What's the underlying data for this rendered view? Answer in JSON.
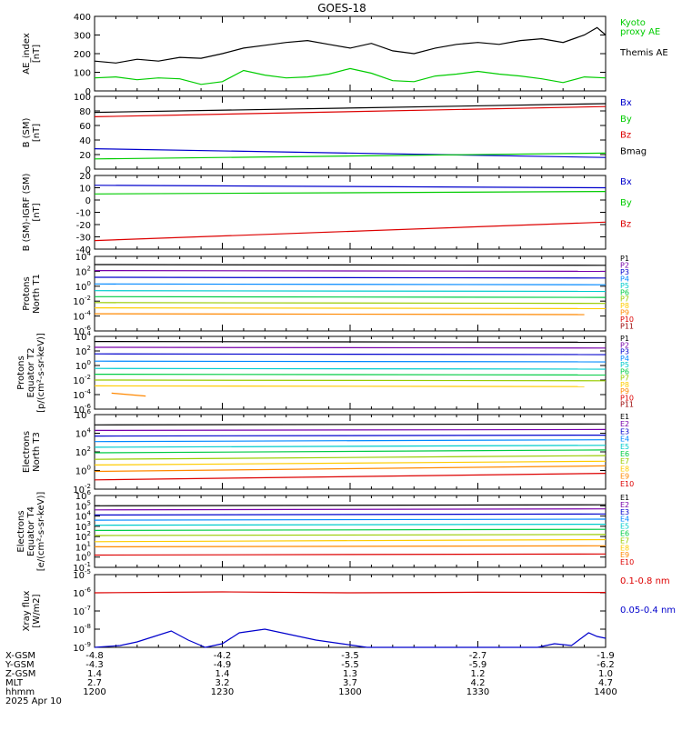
{
  "title": "GOES-18",
  "chart_data": {
    "type": "line",
    "time": {
      "categories": [
        "1200",
        "1230",
        "1300",
        "1330",
        "1400"
      ],
      "rows": [
        {
          "label": "X-GSM",
          "values": [
            "-4.8",
            "-4.2",
            "-3.5",
            "-2.7",
            "-1.9"
          ]
        },
        {
          "label": "Y-GSM",
          "values": [
            "-4.3",
            "-4.9",
            "-5.5",
            "-5.9",
            "-6.2"
          ]
        },
        {
          "label": "Z-GSM",
          "values": [
            "1.4",
            "1.4",
            "1.3",
            "1.2",
            "1.0"
          ]
        },
        {
          "label": "MLT",
          "values": [
            "2.7",
            "3.2",
            "3.7",
            "4.2",
            "4.7"
          ]
        },
        {
          "label": "hhmm",
          "values": [
            "1200",
            "1230",
            "1300",
            "1330",
            "1400"
          ]
        }
      ],
      "date": "2025 Apr 10"
    },
    "panels": [
      {
        "id": "ae",
        "ylabel": "AE_index\n[nT]",
        "scale": "linear",
        "ylim": [
          0,
          400
        ],
        "ticks": [
          "0",
          "100",
          "200",
          "300",
          "400"
        ],
        "series": [
          {
            "name": "Kyoto\nproxy AE",
            "color": "#00cc00",
            "x": [
              0,
              5,
              10,
              15,
              20,
              25,
              30,
              35,
              40,
              45,
              50,
              55,
              60,
              65,
              70,
              75,
              80,
              85,
              90,
              95,
              100,
              105,
              110,
              115,
              120
            ],
            "values": [
              70,
              75,
              60,
              70,
              65,
              35,
              50,
              110,
              85,
              70,
              75,
              90,
              120,
              95,
              55,
              50,
              80,
              90,
              105,
              90,
              80,
              65,
              45,
              75,
              70
            ]
          },
          {
            "name": "Themis AE",
            "color": "#000000",
            "x": [
              0,
              5,
              10,
              15,
              20,
              25,
              30,
              35,
              40,
              45,
              50,
              55,
              60,
              65,
              70,
              75,
              80,
              85,
              90,
              95,
              100,
              105,
              110,
              115,
              118,
              120
            ],
            "values": [
              160,
              150,
              170,
              160,
              180,
              175,
              200,
              230,
              245,
              260,
              270,
              250,
              230,
              255,
              215,
              200,
              230,
              250,
              260,
              250,
              270,
              280,
              260,
              300,
              340,
              300
            ]
          }
        ]
      },
      {
        "id": "bsm",
        "ylabel": "B (SM)\n[nT]",
        "scale": "linear",
        "ylim": [
          0,
          100
        ],
        "ticks": [
          "0",
          "20",
          "40",
          "60",
          "80",
          "100"
        ],
        "series": [
          {
            "name": "Bx",
            "color": "#0000cc",
            "x": [
              0,
              120
            ],
            "values": [
              28,
              16
            ]
          },
          {
            "name": "By",
            "color": "#00cc00",
            "x": [
              0,
              120
            ],
            "values": [
              14,
              22
            ]
          },
          {
            "name": "Bz",
            "color": "#dd0000",
            "x": [
              0,
              120
            ],
            "values": [
              72,
              86
            ]
          },
          {
            "name": "Bmag",
            "color": "#000000",
            "x": [
              0,
              120
            ],
            "values": [
              78,
              90
            ]
          }
        ]
      },
      {
        "id": "bigrf",
        "ylabel": "B (SM)-IGRF (SM)\n[nT]",
        "scale": "linear",
        "ylim": [
          -40,
          20
        ],
        "ticks": [
          "-40",
          "-30",
          "-20",
          "-10",
          "0",
          "10",
          "20"
        ],
        "series": [
          {
            "name": "Bx",
            "color": "#0000cc",
            "x": [
              0,
              120
            ],
            "values": [
              12,
              10
            ]
          },
          {
            "name": "By",
            "color": "#00cc00",
            "x": [
              0,
              120
            ],
            "values": [
              5,
              7
            ]
          },
          {
            "name": "Bz",
            "color": "#dd0000",
            "x": [
              0,
              120
            ],
            "values": [
              -33,
              -18
            ]
          }
        ]
      },
      {
        "id": "protons_t1",
        "ylabel": "Protons\nNorth T1",
        "scale": "log",
        "ylim": [
          -6,
          4
        ],
        "ticks": [
          "10^-6",
          "10^-4",
          "10^-2",
          "10^0",
          "10^2",
          "10^4"
        ],
        "series": [
          {
            "name": "P1",
            "color": "#000000",
            "x": [
              0,
              120
            ],
            "values": [
              2.9,
              2.8
            ]
          },
          {
            "name": "P2",
            "color": "#7700aa",
            "x": [
              0,
              120
            ],
            "values": [
              2.1,
              2.0
            ]
          },
          {
            "name": "P3",
            "color": "#0000cc",
            "x": [
              0,
              120
            ],
            "values": [
              1.2,
              1.1
            ]
          },
          {
            "name": "P4",
            "color": "#0088ff",
            "x": [
              0,
              120
            ],
            "values": [
              0.3,
              0.2
            ]
          },
          {
            "name": "P5",
            "color": "#00cccc",
            "x": [
              0,
              120
            ],
            "values": [
              -0.6,
              -0.7
            ]
          },
          {
            "name": "P6",
            "color": "#00cc44",
            "x": [
              0,
              120
            ],
            "values": [
              -1.4,
              -1.5
            ]
          },
          {
            "name": "P7",
            "color": "#99cc00",
            "x": [
              0,
              120
            ],
            "values": [
              -2.2,
              -2.3
            ]
          },
          {
            "name": "P8",
            "color": "#ffcc00",
            "x": [
              0,
              120
            ],
            "values": [
              -2.9,
              -3.0
            ]
          },
          {
            "name": "P9",
            "color": "#ff8800",
            "x": [
              0,
              115
            ],
            "values": [
              -3.7,
              -3.8
            ]
          },
          {
            "name": "P10",
            "color": "#dd0000",
            "x": [],
            "values": []
          },
          {
            "name": "P11",
            "color": "#990000",
            "x": [],
            "values": []
          }
        ]
      },
      {
        "id": "protons_t2",
        "ylabel": "Protons\nEquator T2\n[p/(cm²-s-sr-keV)]",
        "scale": "log",
        "ylim": [
          -6,
          4
        ],
        "ticks": [
          "10^-6",
          "10^-4",
          "10^-2",
          "10^0",
          "10^2",
          "10^4"
        ],
        "series": [
          {
            "name": "P1",
            "color": "#000000",
            "x": [
              0,
              120
            ],
            "values": [
              3.3,
              3.2
            ]
          },
          {
            "name": "P2",
            "color": "#7700aa",
            "x": [
              0,
              120
            ],
            "values": [
              2.5,
              2.4
            ]
          },
          {
            "name": "P3",
            "color": "#0000cc",
            "x": [
              0,
              120
            ],
            "values": [
              1.6,
              1.5
            ]
          },
          {
            "name": "P4",
            "color": "#0088ff",
            "x": [
              0,
              120
            ],
            "values": [
              0.6,
              0.5
            ]
          },
          {
            "name": "P5",
            "color": "#00cccc",
            "x": [
              0,
              120
            ],
            "values": [
              -0.4,
              -0.5
            ]
          },
          {
            "name": "P6",
            "color": "#00cc44",
            "x": [
              0,
              120
            ],
            "values": [
              -1.2,
              -1.3
            ]
          },
          {
            "name": "P7",
            "color": "#99cc00",
            "x": [
              0,
              120
            ],
            "values": [
              -2.0,
              -2.1
            ]
          },
          {
            "name": "P8",
            "color": "#ffcc00",
            "x": [
              0,
              115
            ],
            "values": [
              -2.8,
              -2.9
            ]
          },
          {
            "name": "P9",
            "color": "#ff8800",
            "x": [
              4,
              12
            ],
            "values": [
              -3.8,
              -4.2
            ]
          },
          {
            "name": "P10",
            "color": "#dd0000",
            "x": [],
            "values": []
          },
          {
            "name": "P11",
            "color": "#990000",
            "x": [],
            "values": []
          }
        ]
      },
      {
        "id": "electrons_t3",
        "ylabel": "Electrons\nNorth T3",
        "scale": "log",
        "ylim": [
          -2,
          6
        ],
        "ticks": [
          "10^-2",
          "10^0",
          "10^2",
          "10^4",
          "10^6"
        ],
        "series": [
          {
            "name": "E1",
            "color": "#000000",
            "x": [
              0,
              120
            ],
            "values": [
              4.9,
              5.0
            ]
          },
          {
            "name": "E2",
            "color": "#7700aa",
            "x": [
              0,
              120
            ],
            "values": [
              4.3,
              4.4
            ]
          },
          {
            "name": "E3",
            "color": "#0000cc",
            "x": [
              0,
              120
            ],
            "values": [
              3.7,
              3.8
            ]
          },
          {
            "name": "E4",
            "color": "#0088ff",
            "x": [
              0,
              120
            ],
            "values": [
              3.1,
              3.3
            ]
          },
          {
            "name": "E5",
            "color": "#00cccc",
            "x": [
              0,
              120
            ],
            "values": [
              2.5,
              2.7
            ]
          },
          {
            "name": "E6",
            "color": "#00cc44",
            "x": [
              0,
              120
            ],
            "values": [
              1.9,
              2.2
            ]
          },
          {
            "name": "E7",
            "color": "#99cc00",
            "x": [
              0,
              120
            ],
            "values": [
              1.2,
              1.6
            ]
          },
          {
            "name": "E8",
            "color": "#ffcc00",
            "x": [
              0,
              120
            ],
            "values": [
              0.6,
              1.0
            ]
          },
          {
            "name": "E9",
            "color": "#ff8800",
            "x": [
              0,
              120
            ],
            "values": [
              -0.1,
              0.5
            ]
          },
          {
            "name": "E10",
            "color": "#dd0000",
            "x": [
              0,
              120
            ],
            "values": [
              -1.0,
              -0.3
            ]
          }
        ]
      },
      {
        "id": "electrons_t4",
        "ylabel": "Electrons\nEquator T4\n[e/(cm²-s-sr-keV)]",
        "scale": "log",
        "ylim": [
          -1,
          6
        ],
        "ticks": [
          "10^-1",
          "10^0",
          "10^1",
          "10^2",
          "10^3",
          "10^4",
          "10^5",
          "10^6"
        ],
        "series": [
          {
            "name": "E1",
            "color": "#000000",
            "x": [
              0,
              120
            ],
            "values": [
              5.0,
              5.1
            ]
          },
          {
            "name": "E2",
            "color": "#7700aa",
            "x": [
              0,
              120
            ],
            "values": [
              4.6,
              4.7
            ]
          },
          {
            "name": "E3",
            "color": "#0000cc",
            "x": [
              0,
              120
            ],
            "values": [
              4.1,
              4.2
            ]
          },
          {
            "name": "E4",
            "color": "#0088ff",
            "x": [
              0,
              120
            ],
            "values": [
              3.6,
              3.7
            ]
          },
          {
            "name": "E5",
            "color": "#00cccc",
            "x": [
              0,
              120
            ],
            "values": [
              3.1,
              3.2
            ]
          },
          {
            "name": "E6",
            "color": "#00cc44",
            "x": [
              0,
              120
            ],
            "values": [
              2.6,
              2.7
            ]
          },
          {
            "name": "E7",
            "color": "#99cc00",
            "x": [
              0,
              120
            ],
            "values": [
              2.1,
              2.2
            ]
          },
          {
            "name": "E8",
            "color": "#ffcc00",
            "x": [
              0,
              120
            ],
            "values": [
              1.5,
              1.7
            ]
          },
          {
            "name": "E9",
            "color": "#ff8800",
            "x": [
              0,
              120
            ],
            "values": [
              1.0,
              1.1
            ]
          },
          {
            "name": "E10",
            "color": "#dd0000",
            "x": [
              0,
              120
            ],
            "values": [
              0.2,
              0.3
            ]
          }
        ]
      },
      {
        "id": "xray",
        "ylabel": "Xray flux\n[W/m2]",
        "scale": "log",
        "ylim": [
          -9,
          -5
        ],
        "ticks": [
          "10^-9",
          "10^-8",
          "10^-7",
          "10^-6",
          "10^-5"
        ],
        "series": [
          {
            "name": "0.1-0.8 nm",
            "color": "#dd0000",
            "x": [
              0,
              30,
              60,
              90,
              120
            ],
            "values": [
              -6.0,
              -5.95,
              -6.0,
              -5.97,
              -5.98
            ]
          },
          {
            "name": "0.05-0.4 nm",
            "color": "#0000cc",
            "x": [
              0,
              6,
              10,
              14,
              18,
              22,
              26,
              30,
              34,
              40,
              46,
              52,
              58,
              64,
              70,
              76,
              80,
              86,
              92,
              98,
              104,
              108,
              112,
              116,
              118,
              120
            ],
            "values": [
              -9.0,
              -8.9,
              -8.7,
              -8.4,
              -8.1,
              -8.6,
              -9.0,
              -8.8,
              -8.2,
              -8.0,
              -8.3,
              -8.6,
              -8.8,
              -9.0,
              -9.0,
              -9.0,
              -9.0,
              -9.0,
              -9.0,
              -9.0,
              -9.0,
              -8.8,
              -8.9,
              -8.2,
              -8.4,
              -8.5
            ]
          }
        ]
      }
    ]
  }
}
